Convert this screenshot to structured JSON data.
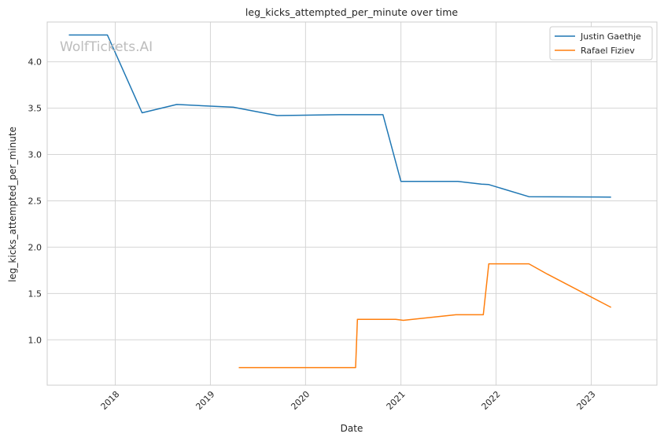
{
  "chart_data": {
    "type": "line",
    "title": "leg_kicks_attempted_per_minute over time",
    "xlabel": "Date",
    "ylabel": "leg_kicks_attempted_per_minute",
    "watermark": "WolfTickets.AI",
    "xlim": [
      "2017-04-15",
      "2023-09-10"
    ],
    "ylim": [
      0.51,
      4.43
    ],
    "x_ticks": [
      {
        "date": "2018-01-01",
        "label": "2018"
      },
      {
        "date": "2019-01-01",
        "label": "2019"
      },
      {
        "date": "2020-01-01",
        "label": "2020"
      },
      {
        "date": "2021-01-01",
        "label": "2021"
      },
      {
        "date": "2022-01-01",
        "label": "2022"
      },
      {
        "date": "2023-01-01",
        "label": "2023"
      }
    ],
    "y_ticks": [
      {
        "value": 1.0,
        "label": "1.0"
      },
      {
        "value": 1.5,
        "label": "1.5"
      },
      {
        "value": 2.0,
        "label": "2.0"
      },
      {
        "value": 2.5,
        "label": "2.5"
      },
      {
        "value": 3.0,
        "label": "3.0"
      },
      {
        "value": 3.5,
        "label": "3.5"
      },
      {
        "value": 4.0,
        "label": "4.0"
      }
    ],
    "grid": true,
    "legend_position": "top-right",
    "series": [
      {
        "name": "Justin Gaethje",
        "color": "#1f77b4",
        "points": [
          {
            "x": "2017-07-07",
            "y": 4.29
          },
          {
            "x": "2017-12-02",
            "y": 4.29
          },
          {
            "x": "2018-04-14",
            "y": 3.45
          },
          {
            "x": "2018-08-25",
            "y": 3.54
          },
          {
            "x": "2019-03-30",
            "y": 3.51
          },
          {
            "x": "2019-09-14",
            "y": 3.42
          },
          {
            "x": "2020-05-09",
            "y": 3.43
          },
          {
            "x": "2020-10-24",
            "y": 3.43
          },
          {
            "x": "2021-01-01",
            "y": 2.71
          },
          {
            "x": "2021-08-07",
            "y": 2.71
          },
          {
            "x": "2021-11-06",
            "y": 2.68
          },
          {
            "x": "2021-12-04",
            "y": 2.675
          },
          {
            "x": "2022-05-07",
            "y": 2.545
          },
          {
            "x": "2023-03-18",
            "y": 2.54
          }
        ]
      },
      {
        "name": "Rafael Fiziev",
        "color": "#ff7f0e",
        "points": [
          {
            "x": "2019-04-20",
            "y": 0.7
          },
          {
            "x": "2020-07-11",
            "y": 0.7
          },
          {
            "x": "2020-07-18",
            "y": 1.22
          },
          {
            "x": "2020-12-12",
            "y": 1.22
          },
          {
            "x": "2021-01-10",
            "y": 1.21
          },
          {
            "x": "2021-07-31",
            "y": 1.27
          },
          {
            "x": "2021-11-13",
            "y": 1.27
          },
          {
            "x": "2021-12-04",
            "y": 1.82
          },
          {
            "x": "2022-05-07",
            "y": 1.82
          },
          {
            "x": "2022-07-16",
            "y": 1.71
          },
          {
            "x": "2023-03-18",
            "y": 1.35
          }
        ]
      }
    ]
  }
}
